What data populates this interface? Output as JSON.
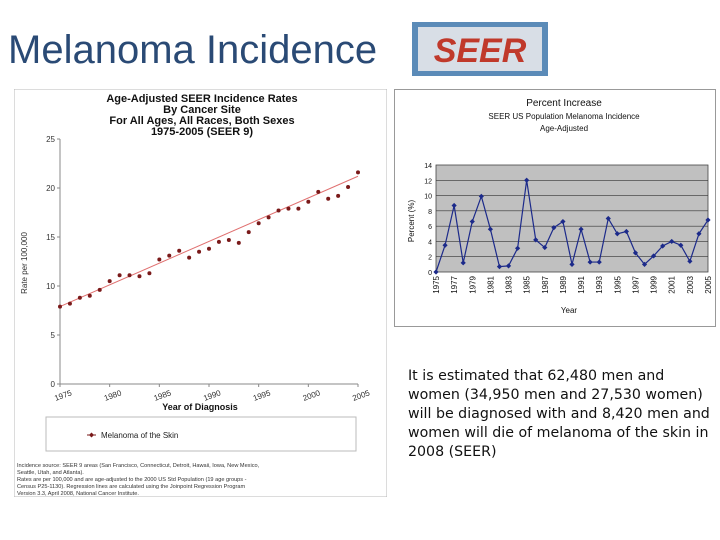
{
  "slide": {
    "title": "Melanoma Incidence",
    "logo_text": "SEER",
    "body": "It is estimated that 62,480 men and women (34,950 men and 27,530 women) will be diagnosed with and 8,420 men and women will die of melanoma of the skin in 2008 (SEER)"
  },
  "chart_data": [
    {
      "type": "scatter",
      "title": "Age-Adjusted SEER Incidence Rates",
      "subtitle_lines": [
        "By Cancer Site",
        "For All Ages, All Races, Both Sexes",
        "1975-2005 (SEER 9)"
      ],
      "xlabel": "Year of Diagnosis",
      "ylabel": "Rate per 100,000",
      "xlim": [
        1975,
        2005
      ],
      "ylim": [
        0,
        25
      ],
      "x_ticks": [
        1975,
        1980,
        1985,
        1990,
        1995,
        2000,
        2005
      ],
      "y_ticks": [
        0,
        5,
        10,
        15,
        20,
        25
      ],
      "series": [
        {
          "name": "Melanoma of the Skin",
          "color": "#7a1a1a",
          "x": [
            1975,
            1976,
            1977,
            1978,
            1979,
            1980,
            1981,
            1982,
            1983,
            1984,
            1985,
            1986,
            1987,
            1988,
            1989,
            1990,
            1991,
            1992,
            1993,
            1994,
            1995,
            1996,
            1997,
            1998,
            1999,
            2000,
            2001,
            2002,
            2003,
            2004,
            2005
          ],
          "values": [
            7.9,
            8.2,
            8.8,
            9.0,
            9.6,
            10.5,
            11.1,
            11.1,
            11.0,
            11.3,
            12.7,
            13.1,
            13.6,
            12.9,
            13.5,
            13.8,
            14.5,
            14.7,
            14.4,
            15.5,
            16.4,
            17.0,
            17.7,
            17.9,
            17.9,
            18.6,
            19.6,
            18.9,
            19.2,
            20.1,
            21.6
          ]
        }
      ],
      "trend_line": {
        "color": "#e07070",
        "x": [
          1975,
          2005
        ],
        "values": [
          7.9,
          21.2
        ]
      },
      "legend": {
        "position": "bottom",
        "label": "Melanoma of the Skin"
      },
      "footnote_lines": [
        "Incidence source: SEER 9 areas (San Francisco, Connecticut, Detroit, Hawaii, Iowa, New Mexico,",
        "Seattle, Utah, and Atlanta).",
        "Rates are per 100,000 and are age-adjusted to the 2000 US Std Population (19 age groups -",
        "Census P25-1130). Regression lines are calculated using the Joinpoint Regression Program",
        "Version 3.3, April 2008, National Cancer Institute."
      ],
      "grid": false
    },
    {
      "type": "line",
      "title": "Percent Increase",
      "subtitle_lines": [
        "SEER US Population Melanoma Incidence",
        "Age-Adjusted"
      ],
      "xlabel": "Year",
      "ylabel": "Percent (%)",
      "ylim": [
        0,
        14
      ],
      "y_ticks": [
        0,
        2,
        4,
        6,
        8,
        10,
        12,
        14
      ],
      "x_tick_labels": [
        "1975",
        "1977",
        "1979",
        "1981",
        "1983",
        "1985",
        "1987",
        "1989",
        "1991",
        "1993",
        "1995",
        "1997",
        "1999",
        "2001",
        "2003",
        "2005"
      ],
      "background": "#c0c0c0",
      "grid": true,
      "series": [
        {
          "name": "",
          "color": "#1c2a8a",
          "x": [
            1975,
            1976,
            1977,
            1978,
            1979,
            1980,
            1981,
            1982,
            1983,
            1984,
            1985,
            1986,
            1987,
            1988,
            1989,
            1990,
            1991,
            1992,
            1993,
            1994,
            1995,
            1996,
            1997,
            1998,
            1999,
            2000,
            2001,
            2002,
            2003,
            2004,
            2005
          ],
          "values": [
            0,
            3.5,
            8.7,
            1.2,
            6.6,
            9.9,
            5.6,
            0.7,
            0.8,
            3.1,
            12,
            4.2,
            3.2,
            5.8,
            6.6,
            1,
            5.6,
            1.3,
            1.3,
            7,
            5,
            5.3,
            2.5,
            1,
            2.1,
            3.4,
            4,
            3.5,
            1.4,
            5,
            6.8
          ]
        }
      ]
    }
  ]
}
